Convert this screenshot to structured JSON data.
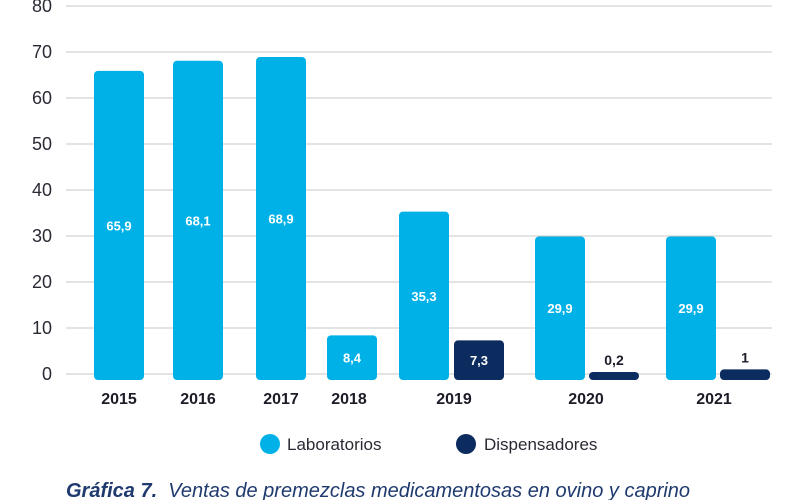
{
  "chart_data": {
    "type": "bar",
    "categories": [
      "2015",
      "2016",
      "2017",
      "2018",
      "2019",
      "2020",
      "2021"
    ],
    "series": [
      {
        "name": "Laboratorios",
        "color": "#00b1e8",
        "values": [
          65.9,
          68.1,
          68.9,
          8.4,
          35.3,
          29.9,
          29.9
        ],
        "labels": [
          "65,9",
          "68,1",
          "68,9",
          "8,4",
          "35,3",
          "29,9",
          "29,9"
        ]
      },
      {
        "name": "Dispensadores",
        "color": "#0c2b5e",
        "values": [
          null,
          null,
          null,
          null,
          7.3,
          0.2,
          1
        ],
        "labels": [
          null,
          null,
          null,
          null,
          "7,3",
          "0,2",
          "1"
        ]
      }
    ],
    "yticks": [
      "0",
      "10",
      "20",
      "30",
      "40",
      "50",
      "60",
      "70",
      "80"
    ],
    "ylim": [
      0,
      80
    ],
    "grid": true,
    "legend_position": "bottom"
  },
  "caption": {
    "label": "Gráfica 7.",
    "text": "Ventas de premezclas medicamentosas en ovino y caprino"
  }
}
